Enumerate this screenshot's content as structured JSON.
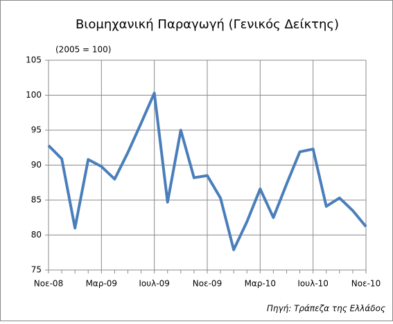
{
  "chart_data": {
    "type": "line",
    "title": "Βιομηχανική Παραγωγή (Γενικός Δείκτης)",
    "subtitle": "(2005 = 100)",
    "source": "Πηγή: Τράπεζα της Ελλάδος",
    "categories": [
      "Νοε-08",
      null,
      null,
      null,
      "Μαρ-09",
      null,
      null,
      null,
      "Ιουλ-09",
      null,
      null,
      null,
      "Νοε-09",
      null,
      null,
      null,
      "Μαρ-10",
      null,
      null,
      null,
      "Ιουλ-10",
      null,
      null,
      null,
      "Νοε-10"
    ],
    "series": [
      {
        "name": "Βιομηχανική Παραγωγή",
        "color": "#4a7ebb",
        "values": [
          92.8,
          90.9,
          81.0,
          90.8,
          89.8,
          88.0,
          91.8,
          96.0,
          100.3,
          84.7,
          95.0,
          88.2,
          88.5,
          85.3,
          77.9,
          81.9,
          86.6,
          82.5,
          87.3,
          91.9,
          92.3,
          84.1,
          85.3,
          83.5,
          81.2
        ]
      }
    ],
    "ylim": [
      75,
      105
    ],
    "yticks": [
      75,
      80,
      85,
      90,
      95,
      100,
      105
    ],
    "grid": true
  }
}
